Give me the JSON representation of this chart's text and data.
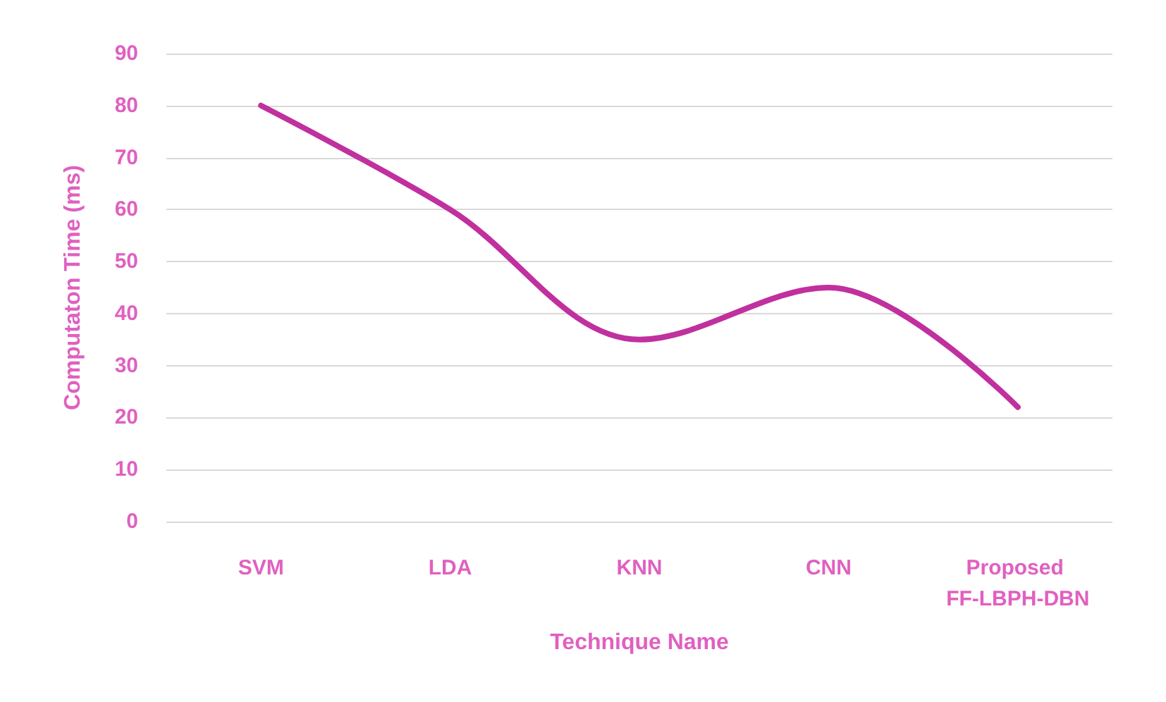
{
  "chart_data": {
    "type": "line",
    "xlabel": "Technique Name",
    "ylabel": "Computaton Time (ms)",
    "categories": [
      "SVM",
      "LDA",
      "KNN",
      "CNN",
      "Proposed FF-LBPH-DBN"
    ],
    "series": [
      {
        "color": "#c0309e",
        "values": [
          80,
          60,
          35,
          45,
          22
        ]
      }
    ],
    "ylim": [
      0,
      90
    ],
    "yticks": [
      0,
      10,
      20,
      30,
      40,
      50,
      60,
      70,
      80,
      90
    ],
    "grid": "y",
    "marker": "none",
    "line_style": "solid"
  }
}
